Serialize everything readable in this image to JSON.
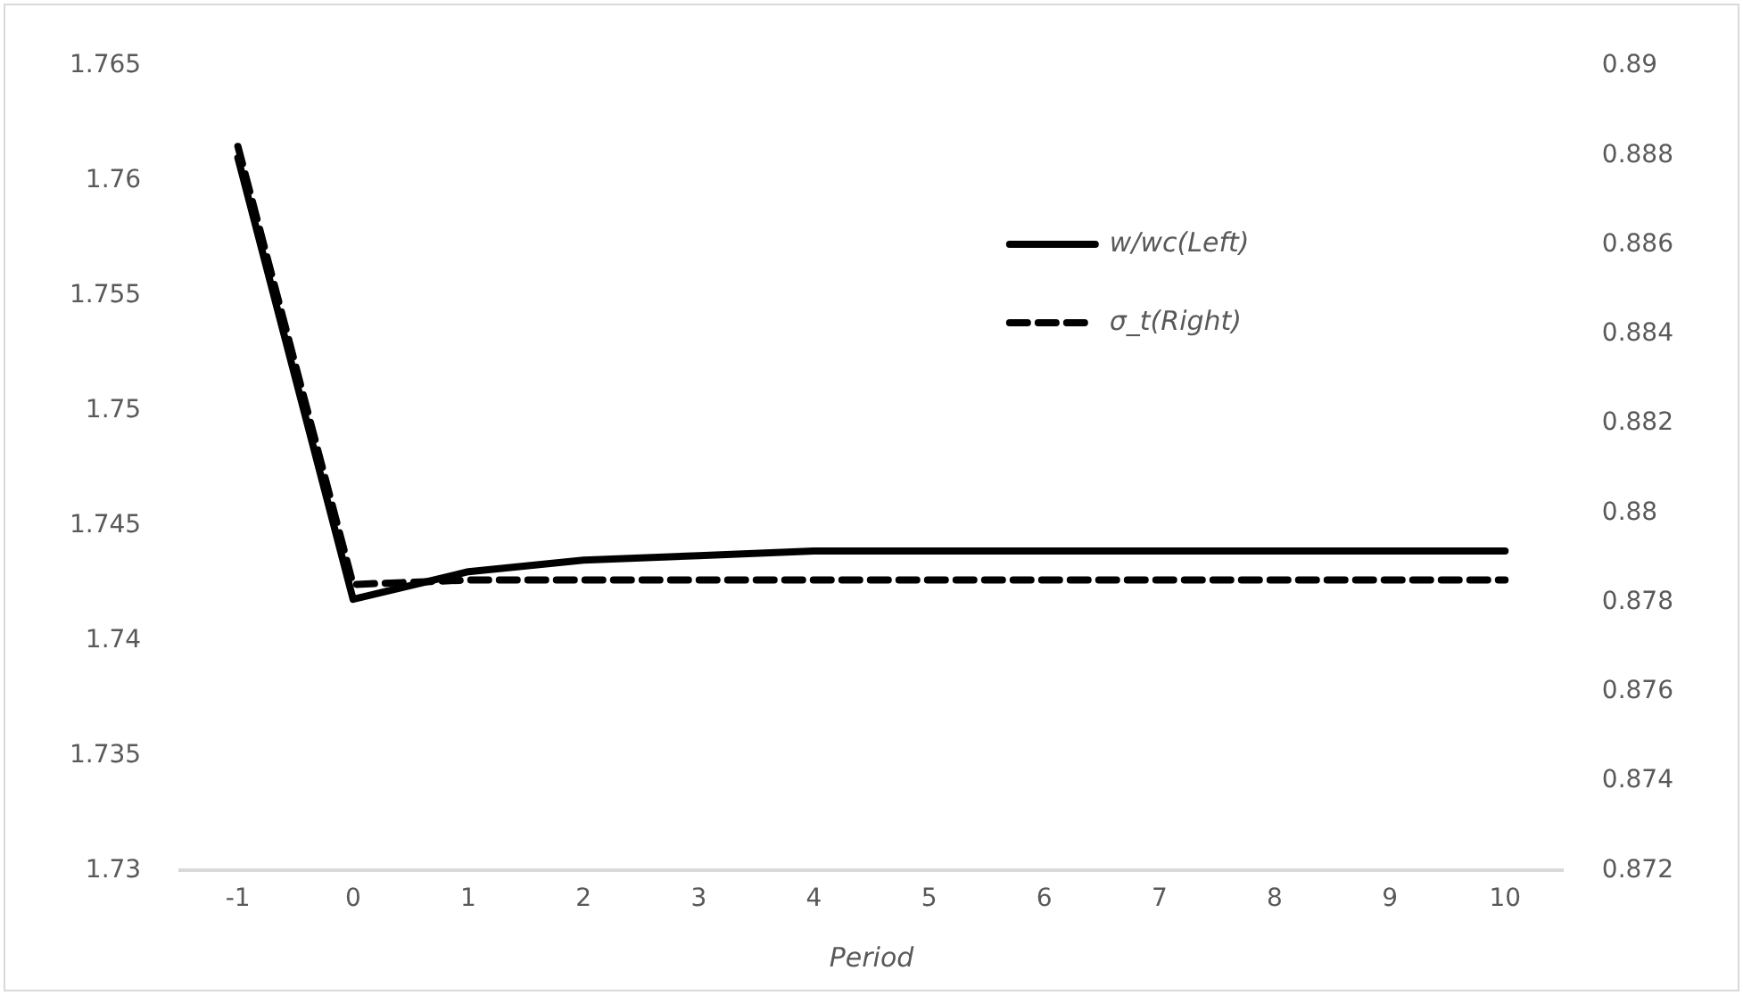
{
  "chart_data": {
    "type": "line",
    "xlabel": "Period",
    "categories": [
      "-1",
      "0",
      "1",
      "2",
      "3",
      "4",
      "5",
      "6",
      "7",
      "8",
      "9",
      "10"
    ],
    "series": [
      {
        "name": "w/wc(Left)",
        "color": "#000000",
        "line_style": "solid",
        "values": [
          1.761,
          1.7418,
          1.743,
          1.7435,
          1.7437,
          1.7439,
          1.7439,
          1.7439,
          1.7439,
          1.7439,
          1.7439,
          1.7439
        ]
      },
      {
        "name": "σ_t(Right)",
        "color": "#000000",
        "line_style": "dashed",
        "axis": "y2",
        "values": [
          0.8882,
          0.8784,
          0.8785,
          0.8785,
          0.8785,
          0.8785,
          0.8785,
          0.8785,
          0.8785,
          0.8785,
          0.8785,
          0.8785
        ]
      }
    ],
    "ylim": [
      1.73,
      1.765
    ],
    "yticks": [
      1.73,
      1.735,
      1.74,
      1.745,
      1.75,
      1.755,
      1.76,
      1.765
    ],
    "y2lim": [
      0.872,
      0.89
    ],
    "y2ticks": [
      0.872,
      0.874,
      0.876,
      0.878,
      0.88,
      0.882,
      0.884,
      0.886,
      0.888,
      0.89
    ],
    "grid": false,
    "legend": "right"
  }
}
